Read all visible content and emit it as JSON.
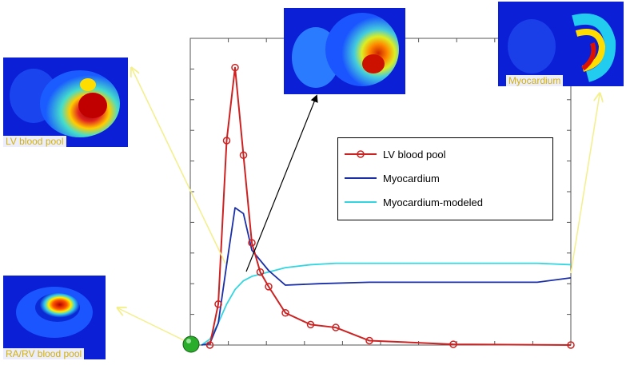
{
  "chart_data": {
    "type": "line",
    "title": "",
    "xlabel": "",
    "ylabel": "",
    "xlim": [
      0,
      44
    ],
    "ylim": [
      0,
      21
    ],
    "grid": false,
    "legend_position": "center-right",
    "series": [
      {
        "name": "LV blood pool",
        "color": "#cc2222",
        "marker": "circle-open",
        "x": [
          1,
          2,
          3,
          4,
          5,
          6,
          7,
          8,
          10,
          13,
          16,
          20,
          30,
          46
        ],
        "y": [
          0,
          2.8,
          14,
          19,
          13,
          7,
          5,
          4,
          2.2,
          1.4,
          1.2,
          0.3,
          0.05,
          0.0
        ]
      },
      {
        "name": "Myocardium",
        "color": "#1a2fa8",
        "marker": "none",
        "x": [
          0,
          1,
          2,
          3,
          4,
          5,
          6,
          8,
          10,
          14,
          20,
          30,
          40,
          50
        ],
        "y": [
          0,
          0.1,
          1.5,
          5.5,
          9.4,
          9.0,
          6.5,
          5.1,
          4.1,
          4.2,
          4.3,
          4.3,
          4.3,
          4.6
        ]
      },
      {
        "name": "Myocardium-modeled",
        "color": "#33d6e0",
        "marker": "none",
        "x": [
          0,
          1,
          2,
          3,
          4,
          5,
          6,
          8,
          10,
          13,
          16,
          20,
          30,
          40,
          50
        ],
        "y": [
          0,
          0.4,
          1.5,
          2.8,
          3.8,
          4.4,
          4.7,
          5.0,
          5.3,
          5.5,
          5.6,
          5.6,
          5.6,
          5.6,
          5.5
        ]
      }
    ]
  },
  "thumbnails": {
    "lv_blood_pool": "LV blood pool",
    "myocardium": "Myocardium",
    "ra_rv_blood_pool": "RA/RV blood pool"
  },
  "colors": {
    "annotation_arrow": "#f3ef8a",
    "peak_arrow": "#000000",
    "start_marker": "#22aa22"
  }
}
